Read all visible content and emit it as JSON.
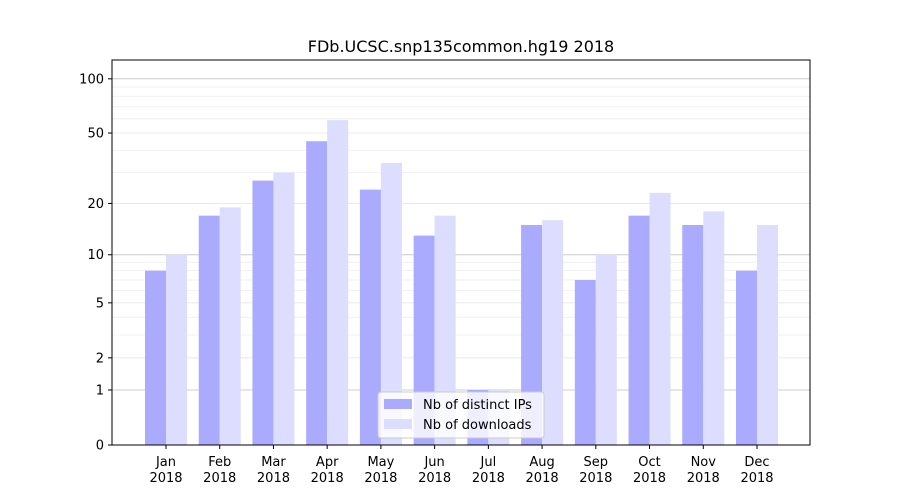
{
  "chart_data": {
    "type": "bar",
    "title": "FDb.UCSC.snp135common.hg19 2018",
    "categories": [
      "Jan\n2018",
      "Feb\n2018",
      "Mar\n2018",
      "Apr\n2018",
      "May\n2018",
      "Jun\n2018",
      "Jul\n2018",
      "Aug\n2018",
      "Sep\n2018",
      "Oct\n2018",
      "Nov\n2018",
      "Dec\n2018"
    ],
    "series": [
      {
        "name": "Nb of distinct IPs",
        "color": "#aaaaff",
        "values": [
          8,
          17,
          27,
          45,
          24,
          13,
          1,
          15,
          7,
          17,
          15,
          8
        ]
      },
      {
        "name": "Nb of downloads",
        "color": "#ddddff",
        "values": [
          10,
          19,
          30,
          59,
          34,
          17,
          1,
          16,
          10,
          23,
          18,
          15
        ]
      }
    ],
    "yscale": "log(1+y)",
    "yticks": [
      0,
      1,
      2,
      5,
      10,
      20,
      50,
      100
    ],
    "ylim": [
      0,
      120
    ],
    "grid": true,
    "legend": "bottom-center"
  }
}
